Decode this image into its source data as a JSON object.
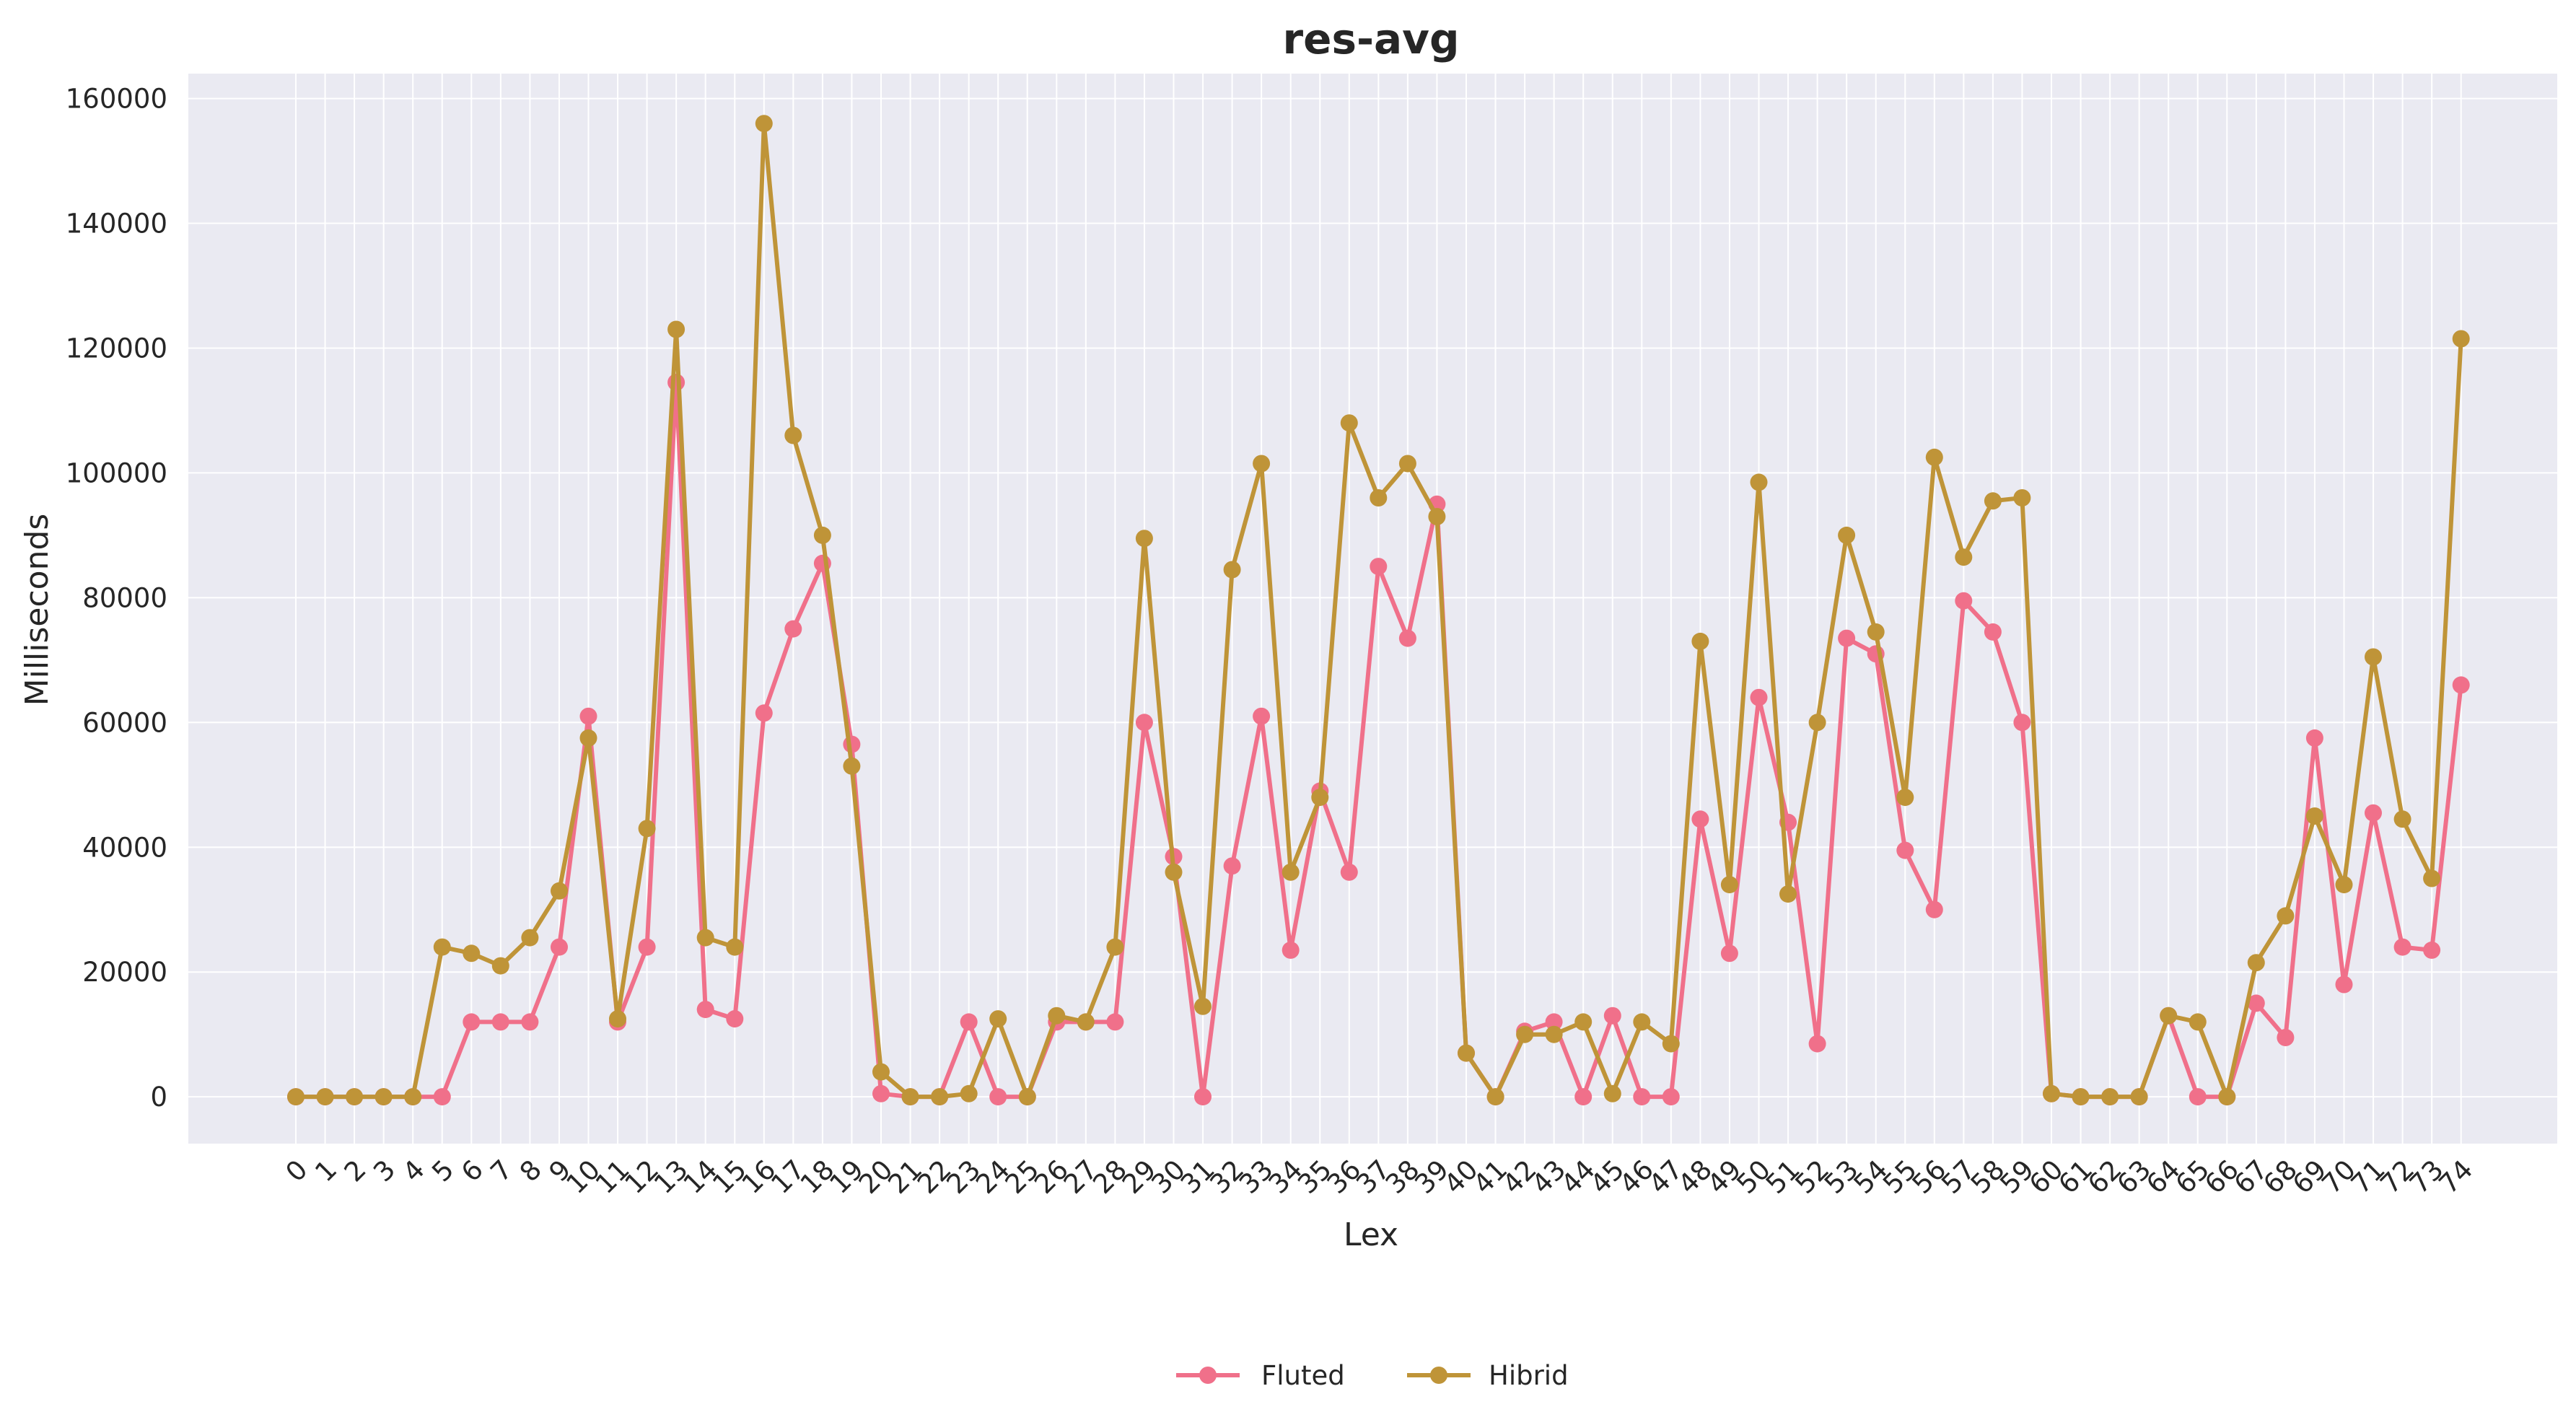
{
  "chart_data": {
    "type": "line",
    "title": "res-avg",
    "xlabel": "Lex",
    "ylabel": "Milliseconds",
    "ylim": [
      -7500,
      164000
    ],
    "yticks": [
      0,
      20000,
      40000,
      60000,
      80000,
      100000,
      120000,
      140000,
      160000
    ],
    "grid": true,
    "legend_position": "bottom-center",
    "x": [
      "0",
      "1",
      "2",
      "3",
      "4",
      "5",
      "6",
      "7",
      "8",
      "9",
      "10",
      "11",
      "12",
      "13",
      "14",
      "15",
      "16",
      "17",
      "18",
      "19",
      "20",
      "21",
      "22",
      "23",
      "24",
      "25",
      "26",
      "27",
      "28",
      "29",
      "30",
      "31",
      "32",
      "33",
      "34",
      "35",
      "36",
      "37",
      "38",
      "39",
      "40",
      "41",
      "42",
      "43",
      "44",
      "45",
      "46",
      "47",
      "48",
      "49",
      "50",
      "51",
      "52",
      "53",
      "54",
      "55",
      "56",
      "57",
      "58",
      "59",
      "60",
      "61",
      "62",
      "63",
      "64",
      "65",
      "66",
      "67",
      "68",
      "69",
      "70",
      "71",
      "72",
      "73",
      "74"
    ],
    "series": [
      {
        "name": "Fluted",
        "color": "#f0708a",
        "values": [
          0,
          0,
          0,
          0,
          0,
          0,
          12000,
          12000,
          12000,
          24000,
          61000,
          12000,
          24000,
          114500,
          14000,
          12500,
          61500,
          75000,
          85500,
          56500,
          500,
          0,
          0,
          12000,
          0,
          0,
          12000,
          12000,
          12000,
          60000,
          38500,
          0,
          37000,
          61000,
          23500,
          49000,
          36000,
          85000,
          73500,
          95000,
          7000,
          0,
          10500,
          12000,
          0,
          13000,
          0,
          0,
          44500,
          23000,
          64000,
          44000,
          8500,
          73500,
          71000,
          39500,
          30000,
          79500,
          74500,
          60000,
          500,
          0,
          0,
          0,
          13000,
          0,
          0,
          15000,
          9500,
          57500,
          18000,
          45500,
          24000,
          23500,
          66000
        ]
      },
      {
        "name": "Hibrid",
        "color": "#bf9438",
        "values": [
          0,
          0,
          0,
          0,
          0,
          24000,
          23000,
          21000,
          25500,
          33000,
          57500,
          12500,
          43000,
          123000,
          25500,
          24000,
          156000,
          106000,
          90000,
          53000,
          4000,
          0,
          0,
          500,
          12500,
          0,
          13000,
          12000,
          24000,
          89500,
          36000,
          14500,
          84500,
          101500,
          36000,
          48000,
          108000,
          96000,
          101500,
          93000,
          7000,
          0,
          10000,
          10000,
          12000,
          500,
          12000,
          8500,
          73000,
          34000,
          98500,
          32500,
          60000,
          90000,
          74500,
          48000,
          102500,
          86500,
          95500,
          96000,
          500,
          0,
          0,
          0,
          13000,
          12000,
          0,
          21500,
          29000,
          45000,
          34000,
          70500,
          44500,
          35000,
          121500
        ]
      }
    ]
  }
}
